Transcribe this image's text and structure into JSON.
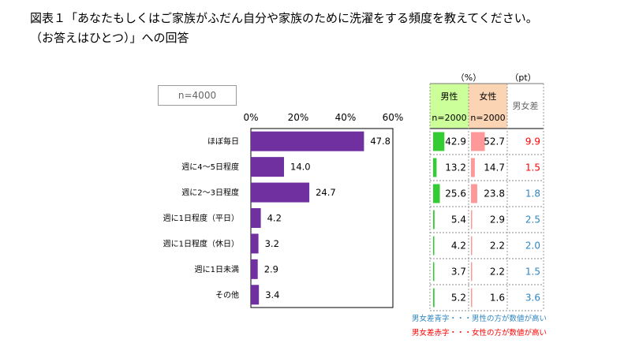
{
  "title_line1": "図表１「あなたもしくはご家族がふだん自分や家族のために洗濯をする頻度を教えてください。",
  "title_line2": "（お答えはひとつ）」への回答",
  "sample_label": "n=4000",
  "chart_data": {
    "type": "bar",
    "orientation": "horizontal",
    "categories": [
      "ほぼ毎日",
      "週に4～5日程度",
      "週に2～3日程度",
      "週に1日程度（平日）",
      "週に1日程度（休日）",
      "週に1日未満",
      "その他"
    ],
    "values": [
      47.8,
      14.0,
      24.7,
      4.2,
      3.2,
      2.9,
      3.4
    ],
    "value_labels": [
      "47.8",
      "14.0",
      "24.7",
      "4.2",
      "3.2",
      "2.9",
      "3.4"
    ],
    "xlim": [
      0,
      60
    ],
    "xticks": [
      "0%",
      "20%",
      "40%",
      "60%"
    ],
    "bar_color": "#7030a0",
    "grid": false
  },
  "table": {
    "unit_pct": "（%）",
    "unit_pt": "（pt）",
    "male_header": "男性",
    "male_n": "n=2000",
    "female_header": "女性",
    "female_n": "n=2000",
    "diff_header": "男女差",
    "male_values": [
      42.9,
      13.2,
      25.6,
      5.4,
      4.2,
      3.7,
      5.2
    ],
    "male_labels": [
      "42.9",
      "13.2",
      "25.6",
      "5.4",
      "4.2",
      "3.7",
      "5.2"
    ],
    "female_values": [
      52.7,
      14.7,
      23.8,
      2.9,
      2.2,
      2.2,
      1.6
    ],
    "female_labels": [
      "52.7",
      "14.7",
      "23.8",
      "2.9",
      "2.2",
      "2.2",
      "1.6"
    ],
    "diff_labels": [
      "9.9",
      "1.5",
      "1.8",
      "2.5",
      "2.0",
      "1.5",
      "3.6"
    ],
    "diff_colors": [
      "red",
      "red",
      "blue",
      "blue",
      "blue",
      "blue",
      "blue"
    ],
    "colors": {
      "male_bar": "#33cc33",
      "female_bar": "#ff9999",
      "male_header_bg": "#ccff99",
      "female_header_bg": "#fbd4b4",
      "diff_blue": "#2e86c1",
      "diff_red": "#ff0000"
    }
  },
  "notes": {
    "blue_note": "男女差青字・・・男性の方が数値が高い",
    "red_note": "男女差赤字・・・女性の方が数値が高い"
  }
}
